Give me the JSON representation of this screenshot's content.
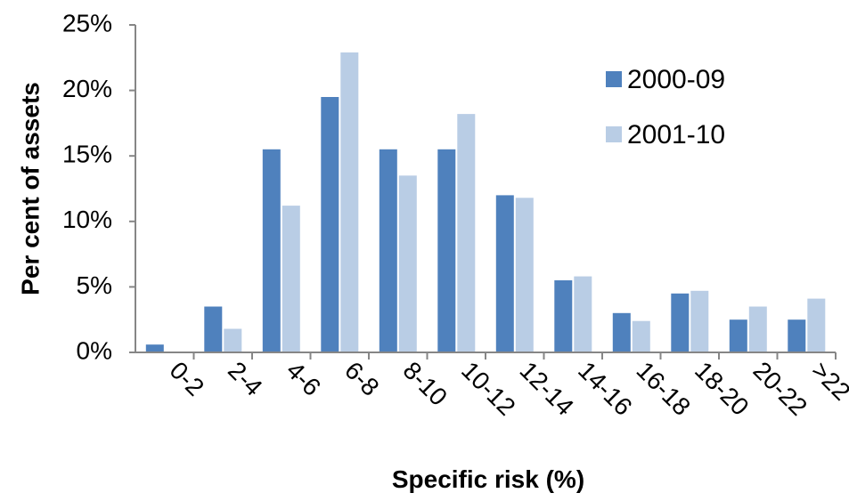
{
  "chart_data": {
    "type": "bar",
    "categories": [
      "0-2",
      "2-4",
      "4-6",
      "6-8",
      "8-10",
      "10-12",
      "12-14",
      "14-16",
      "16-18",
      "18-20",
      "20-22",
      ">22"
    ],
    "series": [
      {
        "name": "2000-09",
        "color": "#4F81BD",
        "values": [
          0.6,
          3.5,
          15.5,
          19.5,
          15.5,
          15.5,
          12.0,
          5.5,
          3.0,
          4.5,
          2.5,
          2.5
        ]
      },
      {
        "name": "2001-10",
        "color": "#B9CDE5",
        "values": [
          0.0,
          1.8,
          11.2,
          22.9,
          13.5,
          18.2,
          11.8,
          5.8,
          2.4,
          4.7,
          3.5,
          4.1
        ]
      }
    ],
    "xlabel": "Specific risk (%)",
    "ylabel": "Per cent of assets",
    "ylim": [
      0,
      25
    ],
    "yticks": [
      "0%",
      "5%",
      "10%",
      "15%",
      "20%",
      "25%"
    ],
    "ytick_values": [
      0,
      5,
      10,
      15,
      20,
      25
    ],
    "grid": false,
    "legend_position": "top-right"
  }
}
